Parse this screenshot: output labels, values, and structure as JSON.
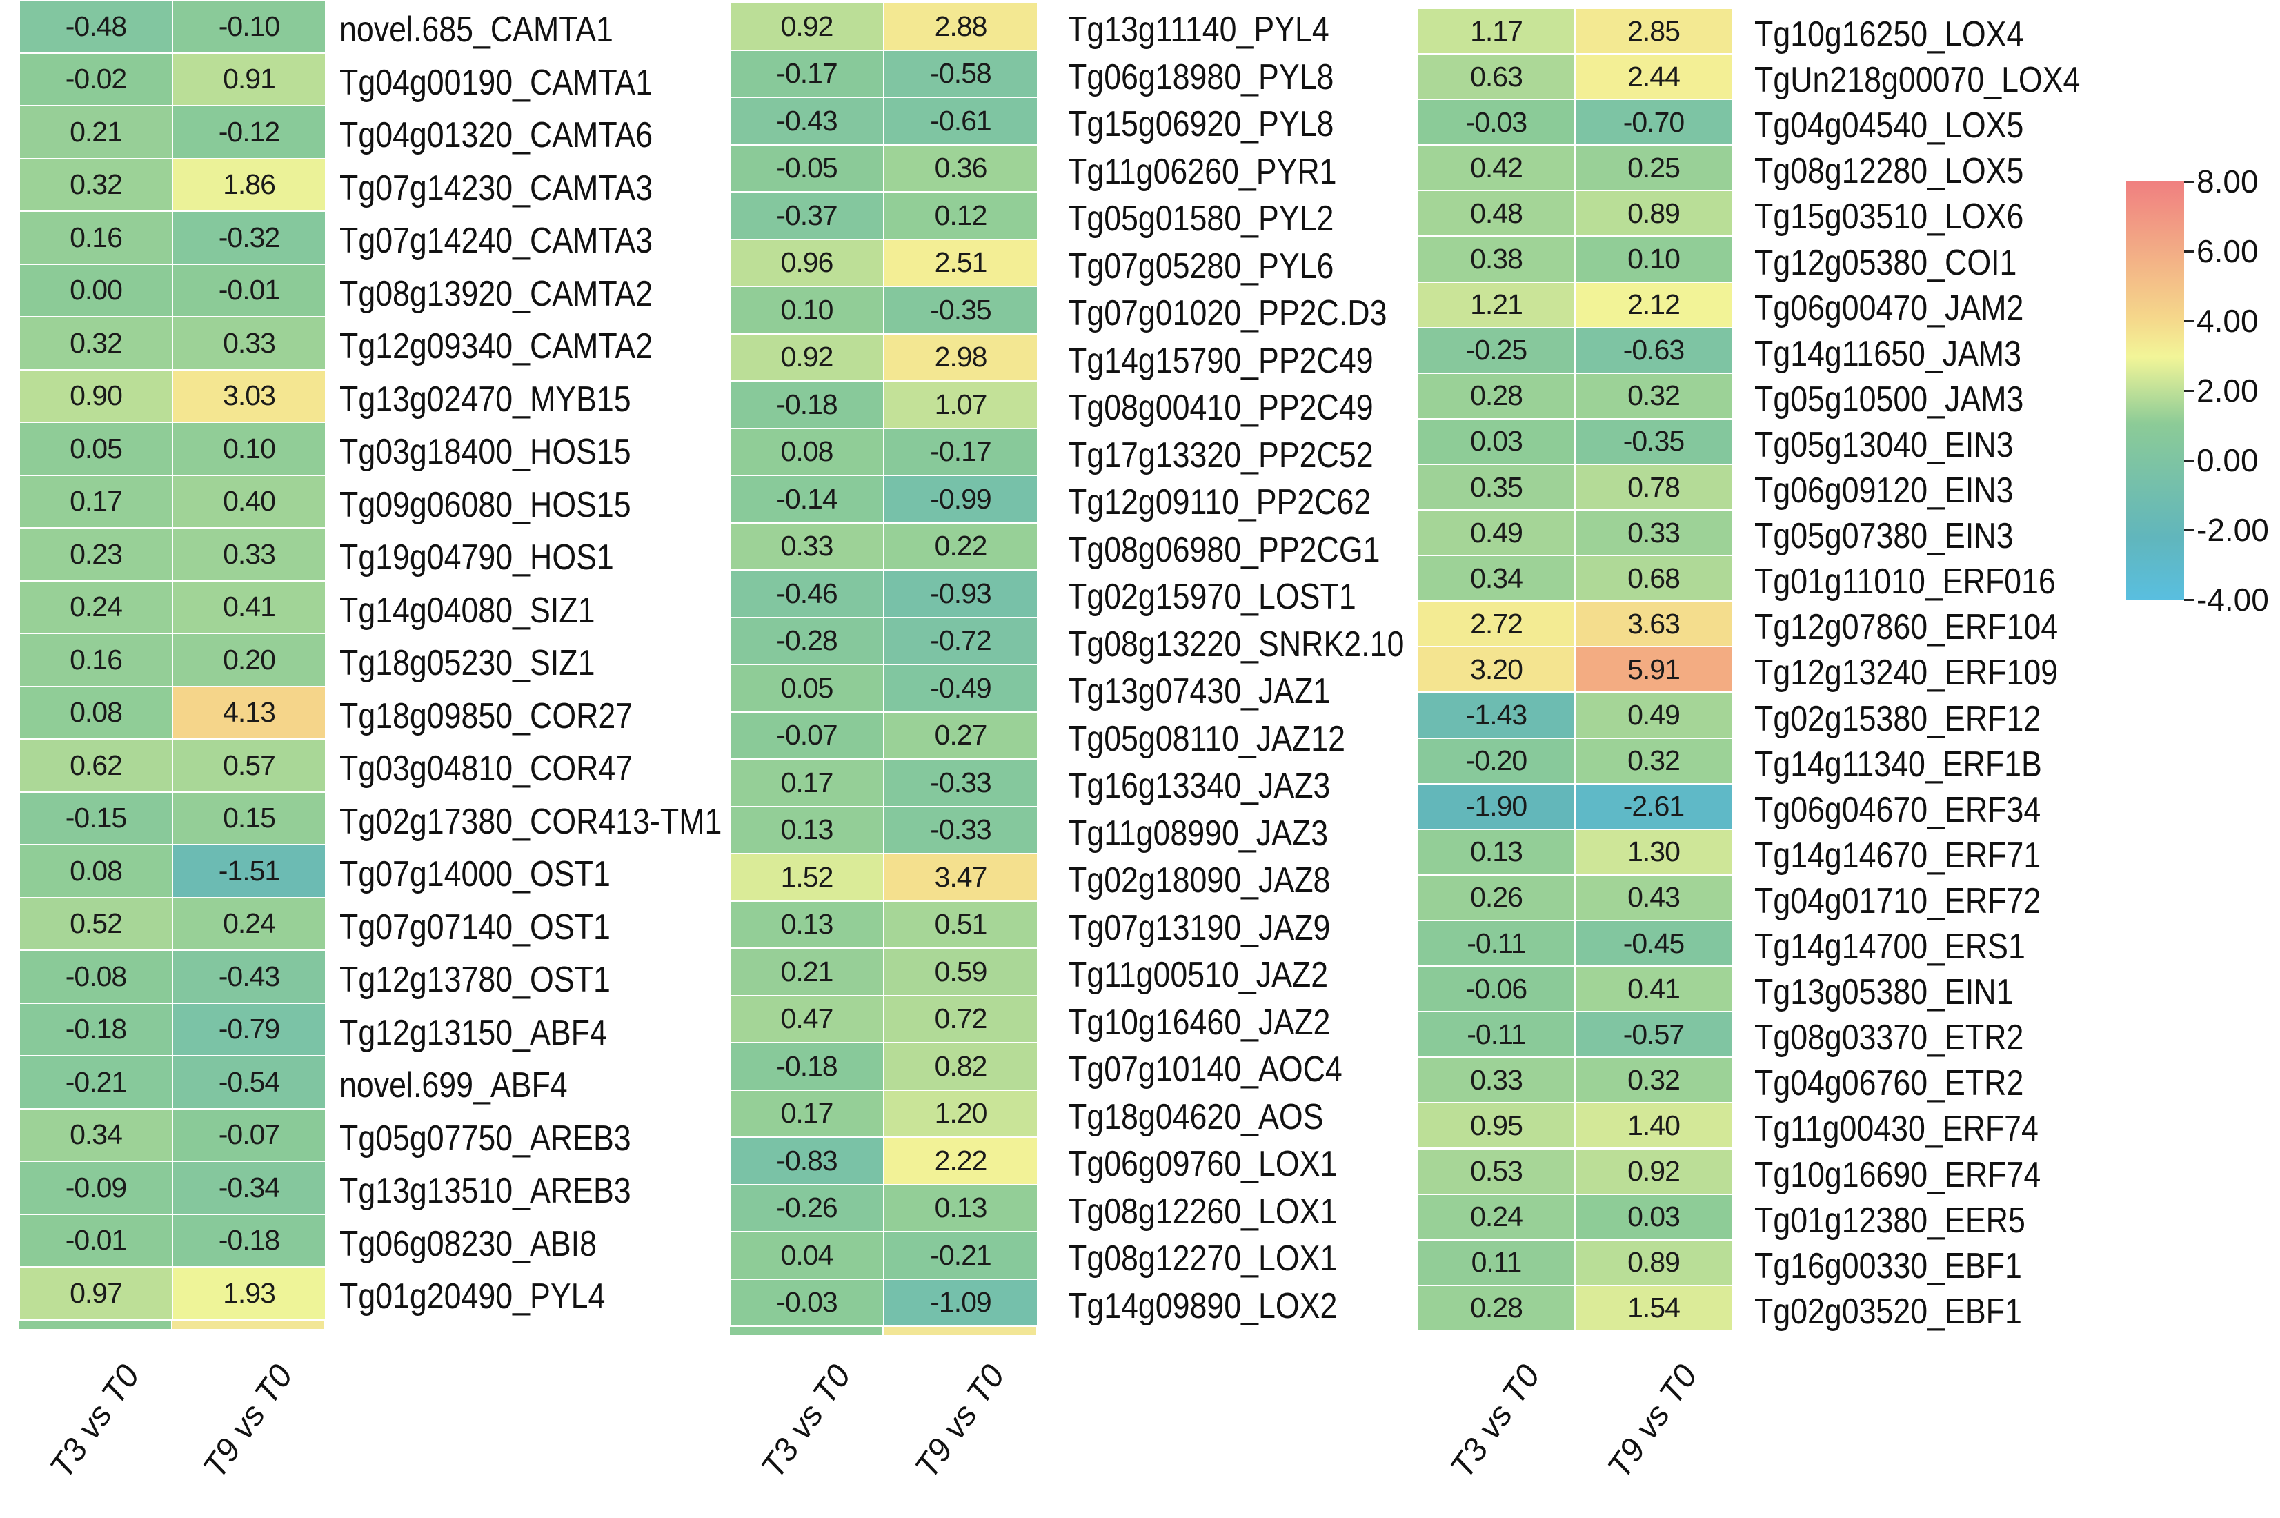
{
  "legend": {
    "labels": [
      "8.00",
      "6.00",
      "4.00",
      "2.00",
      "0.00",
      "-2.00",
      "-4.00"
    ]
  },
  "chart_data": {
    "type": "heatmap",
    "columns": [
      "T3 vs T0",
      "T9 vs T0"
    ],
    "color_scale": {
      "min": -4,
      "max": 8,
      "stops": [
        "#59bfe0",
        "#8ccb97",
        "#f2f598",
        "#f5d88b",
        "#f07f80"
      ]
    },
    "panels": [
      {
        "rows": [
          {
            "gene": "novel.685_CAMTA1",
            "values": [
              -0.48,
              -0.1
            ]
          },
          {
            "gene": "Tg04g00190_CAMTA1",
            "values": [
              -0.02,
              0.91
            ]
          },
          {
            "gene": "Tg04g01320_CAMTA6",
            "values": [
              0.21,
              -0.12
            ]
          },
          {
            "gene": "Tg07g14230_CAMTA3",
            "values": [
              0.32,
              1.86
            ]
          },
          {
            "gene": "Tg07g14240_CAMTA3",
            "values": [
              0.16,
              -0.32
            ]
          },
          {
            "gene": "Tg08g13920_CAMTA2",
            "values": [
              -0.0,
              -0.01
            ]
          },
          {
            "gene": "Tg12g09340_CAMTA2",
            "values": [
              0.32,
              0.33
            ]
          },
          {
            "gene": "Tg13g02470_MYB15",
            "values": [
              0.9,
              3.03
            ]
          },
          {
            "gene": "Tg03g18400_HOS15",
            "values": [
              0.05,
              0.1
            ]
          },
          {
            "gene": "Tg09g06080_HOS15",
            "values": [
              0.17,
              0.4
            ]
          },
          {
            "gene": "Tg19g04790_HOS1",
            "values": [
              0.23,
              0.33
            ]
          },
          {
            "gene": "Tg14g04080_SIZ1",
            "values": [
              0.24,
              0.41
            ]
          },
          {
            "gene": "Tg18g05230_SIZ1",
            "values": [
              0.16,
              0.2
            ]
          },
          {
            "gene": "Tg18g09850_COR27",
            "values": [
              0.08,
              4.13
            ]
          },
          {
            "gene": "Tg03g04810_COR47",
            "values": [
              0.62,
              0.57
            ]
          },
          {
            "gene": "Tg02g17380_COR413-TM1",
            "values": [
              -0.15,
              0.15
            ]
          },
          {
            "gene": "Tg07g14000_OST1",
            "values": [
              0.08,
              -1.51
            ]
          },
          {
            "gene": "Tg07g07140_OST1",
            "values": [
              0.52,
              0.24
            ]
          },
          {
            "gene": "Tg12g13780_OST1",
            "values": [
              -0.08,
              -0.43
            ]
          },
          {
            "gene": "Tg12g13150_ABF4",
            "values": [
              -0.18,
              -0.79
            ]
          },
          {
            "gene": "novel.699_ABF4",
            "values": [
              -0.21,
              -0.54
            ]
          },
          {
            "gene": "Tg05g07750_AREB3",
            "values": [
              0.34,
              -0.07
            ]
          },
          {
            "gene": "Tg13g13510_AREB3",
            "values": [
              -0.09,
              -0.34
            ]
          },
          {
            "gene": "Tg06g08230_ABI8",
            "values": [
              -0.01,
              -0.18
            ]
          },
          {
            "gene": "Tg01g20490_PYL4",
            "values": [
              0.97,
              1.93
            ]
          }
        ]
      },
      {
        "rows": [
          {
            "gene": "Tg13g11140_PYL4",
            "values": [
              0.92,
              2.88
            ]
          },
          {
            "gene": "Tg06g18980_PYL8",
            "values": [
              -0.17,
              -0.58
            ]
          },
          {
            "gene": "Tg15g06920_PYL8",
            "values": [
              -0.43,
              -0.61
            ]
          },
          {
            "gene": "Tg11g06260_PYR1",
            "values": [
              -0.05,
              0.36
            ]
          },
          {
            "gene": "Tg05g01580_PYL2",
            "values": [
              -0.37,
              0.12
            ]
          },
          {
            "gene": "Tg07g05280_PYL6",
            "values": [
              0.96,
              2.51
            ]
          },
          {
            "gene": "Tg07g01020_PP2C.D3",
            "values": [
              0.1,
              -0.35
            ]
          },
          {
            "gene": "Tg14g15790_PP2C49",
            "values": [
              0.92,
              2.98
            ]
          },
          {
            "gene": "Tg08g00410_PP2C49",
            "values": [
              -0.18,
              1.07
            ]
          },
          {
            "gene": "Tg17g13320_PP2C52",
            "values": [
              0.08,
              -0.17
            ]
          },
          {
            "gene": "Tg12g09110_PP2C62",
            "values": [
              -0.14,
              -0.99
            ]
          },
          {
            "gene": "Tg08g06980_PP2CG1",
            "values": [
              0.33,
              0.22
            ]
          },
          {
            "gene": "Tg02g15970_LOST1",
            "values": [
              -0.46,
              -0.93
            ]
          },
          {
            "gene": "Tg08g13220_SNRK2.10",
            "values": [
              -0.28,
              -0.72
            ]
          },
          {
            "gene": "Tg13g07430_JAZ1",
            "values": [
              0.05,
              -0.49
            ]
          },
          {
            "gene": "Tg05g08110_JAZ12",
            "values": [
              -0.07,
              0.27
            ]
          },
          {
            "gene": "Tg16g13340_JAZ3",
            "values": [
              0.17,
              -0.33
            ]
          },
          {
            "gene": "Tg11g08990_JAZ3",
            "values": [
              0.13,
              -0.33
            ]
          },
          {
            "gene": "Tg02g18090_JAZ8",
            "values": [
              1.52,
              3.47
            ]
          },
          {
            "gene": "Tg07g13190_JAZ9",
            "values": [
              0.13,
              0.51
            ]
          },
          {
            "gene": "Tg11g00510_JAZ2",
            "values": [
              0.21,
              0.59
            ]
          },
          {
            "gene": "Tg10g16460_JAZ2",
            "values": [
              0.47,
              0.72
            ]
          },
          {
            "gene": "Tg07g10140_AOC4",
            "values": [
              -0.18,
              0.82
            ]
          },
          {
            "gene": "Tg18g04620_AOS",
            "values": [
              0.17,
              1.2
            ]
          },
          {
            "gene": "Tg06g09760_LOX1",
            "values": [
              -0.83,
              2.22
            ]
          },
          {
            "gene": "Tg08g12260_LOX1",
            "values": [
              -0.26,
              0.13
            ]
          },
          {
            "gene": "Tg08g12270_LOX1",
            "values": [
              0.04,
              -0.21
            ]
          },
          {
            "gene": "Tg14g09890_LOX2",
            "values": [
              -0.03,
              -1.09
            ]
          }
        ]
      },
      {
        "rows": [
          {
            "gene": "Tg10g16250_LOX4",
            "values": [
              1.17,
              2.85
            ]
          },
          {
            "gene": "TgUn218g00070_LOX4",
            "values": [
              0.63,
              2.44
            ]
          },
          {
            "gene": "Tg04g04540_LOX5",
            "values": [
              -0.03,
              -0.7
            ]
          },
          {
            "gene": "Tg08g12280_LOX5",
            "values": [
              0.42,
              0.25
            ]
          },
          {
            "gene": "Tg15g03510_LOX6",
            "values": [
              0.48,
              0.89
            ]
          },
          {
            "gene": "Tg12g05380_COI1",
            "values": [
              0.38,
              0.1
            ]
          },
          {
            "gene": "Tg06g00470_JAM2",
            "values": [
              1.21,
              2.12
            ]
          },
          {
            "gene": "Tg14g11650_JAM3",
            "values": [
              -0.25,
              -0.63
            ]
          },
          {
            "gene": "Tg05g10500_JAM3",
            "values": [
              0.28,
              0.32
            ]
          },
          {
            "gene": "Tg05g13040_EIN3",
            "values": [
              0.03,
              -0.35
            ]
          },
          {
            "gene": "Tg06g09120_EIN3",
            "values": [
              0.35,
              0.78
            ]
          },
          {
            "gene": "Tg05g07380_EIN3",
            "values": [
              0.49,
              0.33
            ]
          },
          {
            "gene": "Tg01g11010_ERF016",
            "values": [
              0.34,
              0.68
            ]
          },
          {
            "gene": "Tg12g07860_ERF104",
            "values": [
              2.72,
              3.63
            ]
          },
          {
            "gene": "Tg12g13240_ERF109",
            "values": [
              3.2,
              5.91
            ]
          },
          {
            "gene": "Tg02g15380_ERF12",
            "values": [
              -1.43,
              0.49
            ]
          },
          {
            "gene": "Tg14g11340_ERF1B",
            "values": [
              -0.2,
              0.32
            ]
          },
          {
            "gene": "Tg06g04670_ERF34",
            "values": [
              -1.9,
              -2.61
            ]
          },
          {
            "gene": "Tg14g14670_ERF71",
            "values": [
              0.13,
              1.3
            ]
          },
          {
            "gene": "Tg04g01710_ERF72",
            "values": [
              0.26,
              0.43
            ]
          },
          {
            "gene": "Tg14g14700_ERS1",
            "values": [
              -0.11,
              -0.45
            ]
          },
          {
            "gene": "Tg13g05380_EIN1",
            "values": [
              -0.06,
              0.41
            ]
          },
          {
            "gene": "Tg08g03370_ETR2",
            "values": [
              -0.11,
              -0.57
            ]
          },
          {
            "gene": "Tg04g06760_ETR2",
            "values": [
              0.33,
              0.32
            ]
          },
          {
            "gene": "Tg11g00430_ERF74",
            "values": [
              0.95,
              1.4
            ]
          },
          {
            "gene": "Tg10g16690_ERF74",
            "values": [
              0.53,
              0.92
            ]
          },
          {
            "gene": "Tg01g12380_EER5",
            "values": [
              0.24,
              0.03
            ]
          },
          {
            "gene": "Tg16g00330_EBF1",
            "values": [
              0.11,
              0.89
            ]
          },
          {
            "gene": "Tg02g03520_EBF1",
            "values": [
              0.28,
              1.54
            ]
          }
        ]
      }
    ]
  }
}
